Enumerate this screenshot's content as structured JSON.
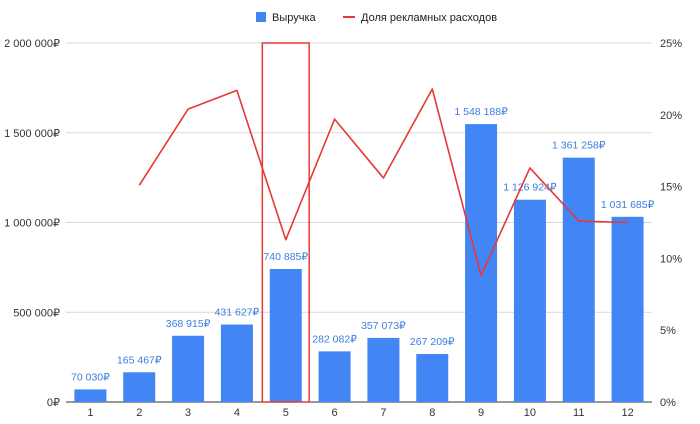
{
  "chart_data": {
    "type": "bar",
    "categories": [
      "1",
      "2",
      "3",
      "4",
      "5",
      "6",
      "7",
      "8",
      "9",
      "10",
      "11",
      "12"
    ],
    "series": [
      {
        "name": "Выручка",
        "type": "bar",
        "axis": "left",
        "color": "#4285f4",
        "values": [
          70030,
          165467,
          368915,
          431627,
          740885,
          282082,
          357073,
          267209,
          1548188,
          1126924,
          1361258,
          1031685
        ],
        "labels": [
          "70 030₽",
          "165 467₽",
          "368 915₽",
          "431 627₽",
          "740 885₽",
          "282 082₽",
          "357 073₽",
          "267 209₽",
          "1 548 188₽",
          "1 126 924₽",
          "1 361 258₽",
          "1 031 685₽"
        ]
      },
      {
        "name": "Доля рекламных расходов",
        "type": "line",
        "axis": "right",
        "color": "#e53935",
        "values": [
          null,
          15.1,
          20.4,
          21.7,
          11.3,
          19.7,
          15.6,
          21.8,
          8.8,
          16.3,
          12.6,
          12.5
        ]
      }
    ],
    "y_left": {
      "ylim": [
        0,
        2000000
      ],
      "ticks": [
        0,
        500000,
        1000000,
        1500000,
        2000000
      ],
      "tick_labels": [
        "0₽",
        "500 000₽",
        "1 000 000₽",
        "1 500 000₽",
        "2 000 000₽"
      ]
    },
    "y_right": {
      "ylim": [
        0,
        25
      ],
      "ticks": [
        0,
        5,
        10,
        15,
        20,
        25
      ],
      "tick_labels": [
        "0%",
        "5%",
        "10%",
        "15%",
        "20%",
        "25%"
      ]
    },
    "highlight": {
      "category": "5",
      "color": "#e53935"
    },
    "legend_position": "top-center",
    "grid": true
  }
}
